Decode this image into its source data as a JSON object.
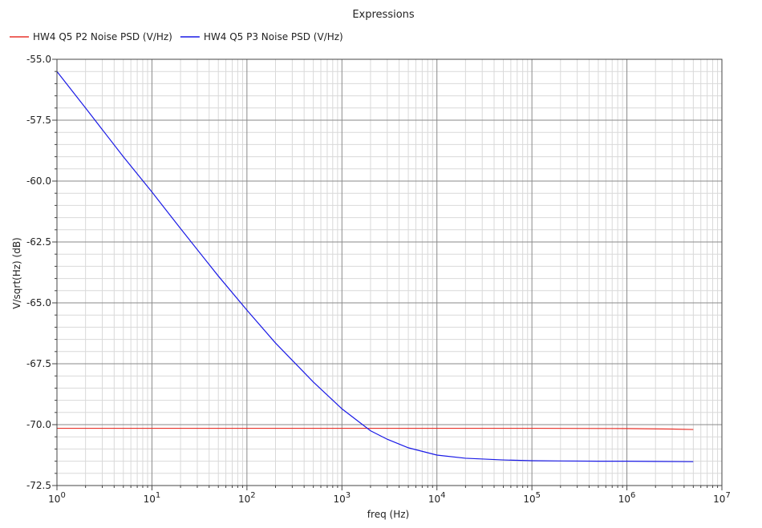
{
  "chart_data": {
    "type": "line",
    "title": "Expressions",
    "xlabel": "freq (Hz)",
    "ylabel": "V/sqrt(Hz) (dB)",
    "x_scale": "log",
    "xlim": [
      1,
      10000000
    ],
    "ylim": [
      -72.5,
      -55.0
    ],
    "x_tick_base": "10",
    "x_ticks": [
      {
        "value": 1,
        "exp": "0"
      },
      {
        "value": 10,
        "exp": "1"
      },
      {
        "value": 100,
        "exp": "2"
      },
      {
        "value": 1000,
        "exp": "3"
      },
      {
        "value": 10000,
        "exp": "4"
      },
      {
        "value": 100000,
        "exp": "5"
      },
      {
        "value": 1000000,
        "exp": "6"
      },
      {
        "value": 10000000,
        "exp": "7"
      }
    ],
    "y_ticks": [
      {
        "value": -55.0,
        "label": "-55.0"
      },
      {
        "value": -57.5,
        "label": "-57.5"
      },
      {
        "value": -60.0,
        "label": "-60.0"
      },
      {
        "value": -62.5,
        "label": "-62.5"
      },
      {
        "value": -65.0,
        "label": "-65.0"
      },
      {
        "value": -67.5,
        "label": "-67.5"
      },
      {
        "value": -70.0,
        "label": "-70.0"
      },
      {
        "value": -72.5,
        "label": "-72.5"
      }
    ],
    "grid": true,
    "legend_position": "top-left",
    "series": [
      {
        "name": "HW4 Q5 P2 Noise PSD (V/Hz)",
        "color": "#e8332b",
        "x": [
          1,
          10,
          100,
          1000,
          10000,
          100000,
          1000000,
          3000000,
          5000000
        ],
        "y": [
          -70.15,
          -70.15,
          -70.15,
          -70.15,
          -70.15,
          -70.15,
          -70.16,
          -70.18,
          -70.2
        ]
      },
      {
        "name": "HW4 Q5 P3 Noise PSD (V/Hz)",
        "color": "#1a1ae6",
        "x": [
          1,
          2,
          5,
          10,
          20,
          50,
          100,
          200,
          500,
          1000,
          2000,
          3000,
          5000,
          10000,
          20000,
          50000,
          100000,
          200000,
          500000,
          1000000,
          2000000,
          5000000
        ],
        "y": [
          -55.5,
          -57.0,
          -59.0,
          -60.45,
          -61.95,
          -63.9,
          -65.3,
          -66.65,
          -68.25,
          -69.35,
          -70.25,
          -70.6,
          -70.95,
          -71.25,
          -71.38,
          -71.45,
          -71.48,
          -71.49,
          -71.5,
          -71.5,
          -71.51,
          -71.52
        ]
      }
    ]
  }
}
